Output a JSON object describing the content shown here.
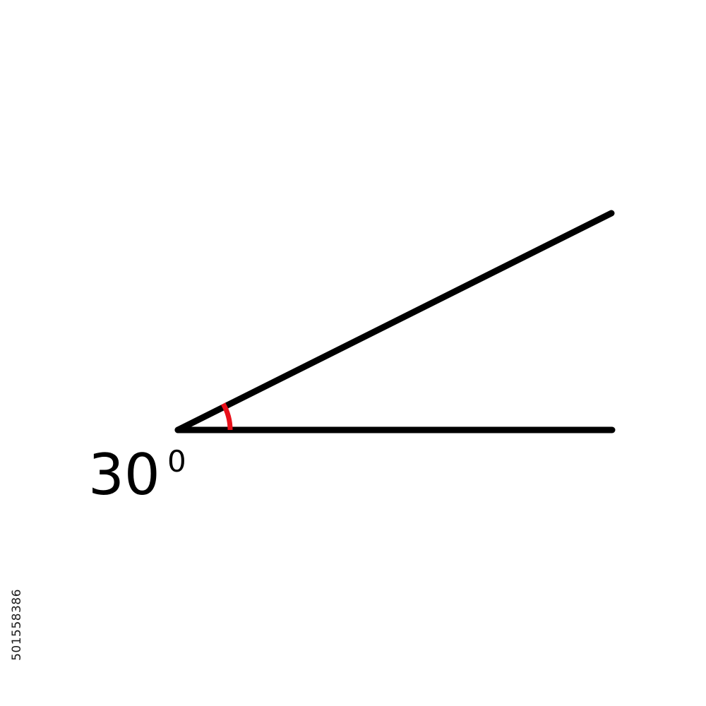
{
  "diagram": {
    "angle_degrees": 30,
    "angle_label": {
      "value": "30",
      "unit": "0"
    },
    "line_color": "#000000",
    "arc_color": "#e8101a"
  },
  "watermark": {
    "stock_id": "501558386"
  }
}
